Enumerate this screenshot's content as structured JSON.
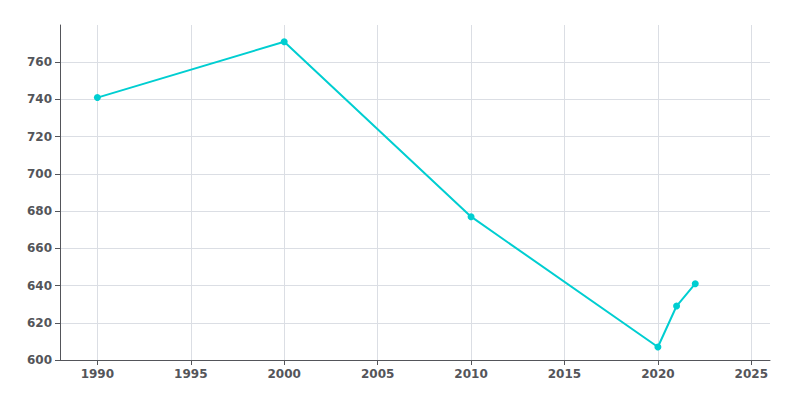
{
  "chart_data": {
    "type": "line",
    "x": [
      1990,
      2000,
      2010,
      2020,
      2021,
      2022
    ],
    "values": [
      741,
      771,
      677,
      607,
      629,
      641
    ],
    "color": "#00CED1",
    "marker": "circle",
    "xlim": [
      1988,
      2026
    ],
    "ylim": [
      600,
      780
    ],
    "xticks": [
      1990,
      1995,
      2000,
      2005,
      2010,
      2015,
      2020,
      2025
    ],
    "yticks": [
      600,
      620,
      640,
      660,
      680,
      700,
      720,
      740,
      760
    ],
    "grid": true
  }
}
